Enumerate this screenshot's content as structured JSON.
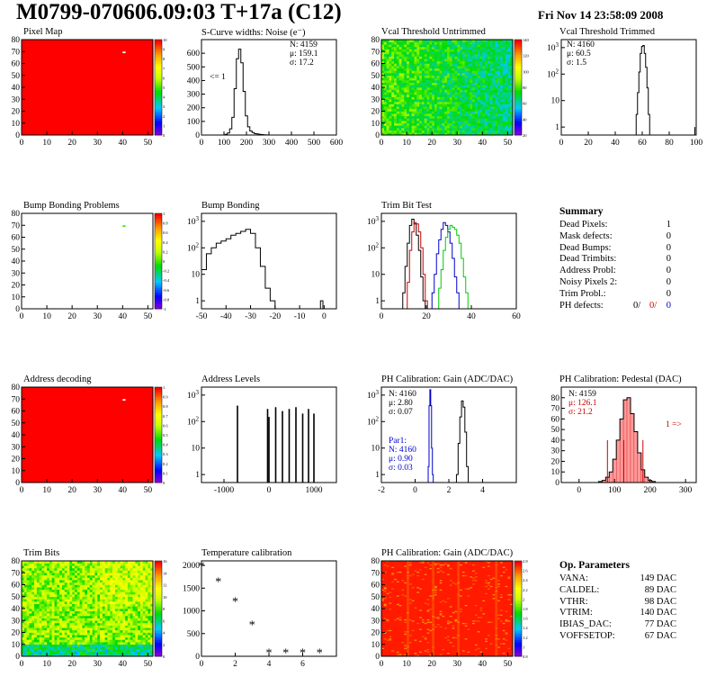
{
  "header": {
    "title": "M0799-070606.09:03 T+17a (C12)",
    "date": "Fri Nov 14 23:58:09 2008"
  },
  "colors": {
    "map_red": "#ff0000",
    "hist_black": "#000000",
    "trim_red": "#cc0000",
    "trim_blue": "#0000cc",
    "trim_green": "#00cc00",
    "pedestal_fill": "#ff9999"
  },
  "panels": {
    "pixel_map": {
      "title": "Pixel Map",
      "palette_ticks": [
        "10",
        "9",
        "8",
        "7",
        "6",
        "5",
        "4",
        "3",
        "2",
        "1",
        "0"
      ]
    },
    "scurve": {
      "title": "S-Curve widths: Noise (e⁻)",
      "stats": [
        "N: 4159",
        "μ: 159.1",
        "σ: 17.2"
      ],
      "underflow_label": "<= 1"
    },
    "vcal_untrimmed": {
      "title": "Vcal Threshold Untrimmed",
      "palette_ticks": [
        "140",
        "120",
        "100",
        "80",
        "60",
        "40",
        "20"
      ]
    },
    "vcal_trimmed": {
      "title": "Vcal Threshold Trimmed",
      "stats": [
        "N: 4160",
        "μ: 60.5",
        "σ:  1.5"
      ]
    },
    "bump_problems": {
      "title": "Bump Bonding Problems",
      "palette_ticks": [
        "1",
        "0.8",
        "0.6",
        "0.4",
        "0.2",
        "0",
        "-0.2",
        "-0.4",
        "-0.6",
        "-0.8",
        "-1"
      ]
    },
    "bump_bonding": {
      "title": "Bump Bonding"
    },
    "trim_bit_test": {
      "title": "Trim Bit Test"
    },
    "address_decoding": {
      "title": "Address decoding",
      "palette_ticks": [
        "1",
        "0.9",
        "0.8",
        "0.7",
        "0.6",
        "0.5",
        "0.4",
        "0.3",
        "0.2",
        "0.1",
        "0"
      ]
    },
    "address_levels": {
      "title": "Address Levels"
    },
    "ph_gain": {
      "title": "PH Calibration: Gain (ADC/DAC)",
      "stats": [
        "N: 4160",
        "μ: 2.80",
        "σ: 0.07"
      ],
      "par1_stats": [
        "Par1:",
        "N: 4160",
        "μ: 0.90",
        "σ: 0.03"
      ]
    },
    "ph_pedestal": {
      "title": "PH Calibration: Pedestal (DAC)",
      "stats": [
        "N: 4159",
        "μ: 126.1",
        "σ: 21.2"
      ],
      "overflow_label": "1 =>"
    },
    "trim_bits": {
      "title": "Trim Bits",
      "palette_ticks": [
        "16",
        "14",
        "12",
        "10",
        "8",
        "6",
        "4",
        "2",
        "0"
      ]
    },
    "temperature": {
      "title": "Temperature calibration"
    },
    "ph_gain_map": {
      "title": "PH Calibration: Gain (ADC/DAC)",
      "palette_ticks": [
        "2.8",
        "2.6",
        "2.4",
        "2.2",
        "2",
        "1.8",
        "1.6",
        "1.4",
        "1.2",
        "1",
        "0.8"
      ]
    }
  },
  "summary": {
    "heading": "Summary",
    "rows": [
      {
        "label": "Dead Pixels:",
        "value": "1"
      },
      {
        "label": "Mask defects:",
        "value": "0"
      },
      {
        "label": "Dead Bumps:",
        "value": "0"
      },
      {
        "label": "Dead Trimbits:",
        "value": "0"
      },
      {
        "label": "Address Probl:",
        "value": "0"
      },
      {
        "label": "Noisy Pixels 2:",
        "value": "0"
      },
      {
        "label": "Trim Probl.:",
        "value": "0"
      }
    ],
    "ph_defects": {
      "label": "PH defects:",
      "v1": "0/",
      "v2": "0/",
      "v3": "0"
    }
  },
  "op_parameters": {
    "heading": "Op. Parameters",
    "rows": [
      {
        "label": "VANA:",
        "value": "149 DAC"
      },
      {
        "label": "CALDEL:",
        "value": "89 DAC"
      },
      {
        "label": "VTHR:",
        "value": "98 DAC"
      },
      {
        "label": "VTRIM:",
        "value": "140 DAC"
      },
      {
        "label": "IBIAS_DAC:",
        "value": "77 DAC"
      },
      {
        "label": "VOFFSETOP:",
        "value": "67 DAC"
      }
    ]
  },
  "chart_data": [
    {
      "id": "pixel_map",
      "type": "heatmap",
      "title": "Pixel Map",
      "xlim": [
        0,
        52
      ],
      "ylim": [
        0,
        80
      ],
      "xticks": [
        0,
        10,
        20,
        30,
        40,
        50
      ],
      "yticks": [
        0,
        10,
        20,
        30,
        40,
        50,
        60,
        70,
        80
      ],
      "zrange": [
        0,
        10
      ],
      "fill": "uniform-red",
      "special_pixels": [
        {
          "x": 40,
          "y": 70,
          "z": 0
        }
      ]
    },
    {
      "id": "scurve",
      "type": "line",
      "title": "S-Curve widths: Noise (e⁻)",
      "xlim": [
        0,
        600
      ],
      "ylim": [
        0,
        700
      ],
      "xticks": [
        0,
        100,
        200,
        300,
        400,
        500,
        600
      ],
      "yticks": [
        0,
        100,
        200,
        300,
        400,
        500,
        600
      ],
      "x": [
        100,
        110,
        120,
        130,
        140,
        150,
        160,
        170,
        180,
        190,
        200,
        210,
        220,
        230,
        240,
        250,
        260,
        270,
        280,
        290,
        300
      ],
      "y": [
        0,
        5,
        15,
        45,
        130,
        340,
        560,
        630,
        530,
        320,
        140,
        60,
        30,
        18,
        10,
        8,
        5,
        3,
        2,
        1,
        0
      ]
    },
    {
      "id": "vcal_untrimmed",
      "type": "heatmap",
      "title": "Vcal Threshold Untrimmed",
      "xlim": [
        0,
        52
      ],
      "ylim": [
        0,
        80
      ],
      "xticks": [
        0,
        10,
        20,
        30,
        40,
        50
      ],
      "yticks": [
        0,
        10,
        20,
        30,
        40,
        50,
        60,
        70,
        80
      ],
      "zrange": [
        0,
        150
      ],
      "fill": "orange-yellow-gradient",
      "left_z": 75,
      "right_z": 55
    },
    {
      "id": "vcal_trimmed",
      "type": "line",
      "log_y": true,
      "title": "Vcal Threshold Trimmed",
      "xlim": [
        0,
        100
      ],
      "ylim": [
        0.5,
        2000
      ],
      "xticks": [
        0,
        20,
        40,
        60,
        80,
        100
      ],
      "yticks": [
        1,
        10,
        100,
        1000
      ],
      "x": [
        55,
        56,
        57,
        58,
        59,
        60,
        61,
        62,
        63,
        64,
        65,
        66,
        99
      ],
      "y": [
        0.5,
        3,
        20,
        120,
        600,
        1100,
        1200,
        600,
        180,
        30,
        3,
        0.5,
        1
      ]
    },
    {
      "id": "bump_problems",
      "type": "heatmap",
      "title": "Bump Bonding Problems",
      "xlim": [
        0,
        52
      ],
      "ylim": [
        0,
        80
      ],
      "xticks": [
        0,
        10,
        20,
        30,
        40,
        50
      ],
      "yticks": [
        0,
        10,
        20,
        30,
        40,
        50,
        60,
        70,
        80
      ],
      "zrange": [
        -1,
        1
      ],
      "fill": "empty",
      "special_pixels": [
        {
          "x": 40,
          "y": 70,
          "z": 1
        }
      ]
    },
    {
      "id": "bump_bonding",
      "type": "line",
      "log_y": true,
      "title": "Bump Bonding",
      "xlim": [
        -50,
        5
      ],
      "ylim": [
        0.5,
        2000
      ],
      "xticks": [
        -50,
        -40,
        -30,
        -20,
        -10,
        0
      ],
      "yticks": [
        1,
        10,
        100,
        1000
      ],
      "x": [
        -49,
        -47,
        -45,
        -43,
        -41,
        -39,
        -37,
        -35,
        -33,
        -31,
        -29,
        -27,
        -25,
        -23,
        -21,
        -19,
        -17,
        -1
      ],
      "y": [
        15,
        60,
        100,
        150,
        180,
        220,
        300,
        350,
        420,
        500,
        350,
        100,
        20,
        3,
        1,
        0.5,
        0.5,
        1
      ]
    },
    {
      "id": "trim_bit_test",
      "type": "line",
      "log_y": true,
      "title": "Trim Bit Test",
      "xlim": [
        0,
        60
      ],
      "ylim": [
        0.5,
        2000
      ],
      "xticks": [
        0,
        20,
        40,
        60
      ],
      "yticks": [
        1,
        10,
        100,
        1000
      ],
      "series": [
        {
          "color": "black",
          "x": [
            10,
            11,
            12,
            13,
            14,
            15,
            16,
            17,
            18,
            19
          ],
          "y": [
            2,
            20,
            150,
            700,
            1200,
            800,
            300,
            80,
            8,
            1
          ]
        },
        {
          "color": "red",
          "x": [
            12,
            13,
            14,
            15,
            16,
            17,
            18,
            19,
            20
          ],
          "y": [
            5,
            80,
            400,
            900,
            800,
            400,
            100,
            10,
            1
          ]
        },
        {
          "color": "blue",
          "x": [
            23,
            24,
            25,
            26,
            27,
            28,
            29,
            30,
            31,
            32,
            33,
            34,
            35
          ],
          "y": [
            2,
            10,
            60,
            200,
            500,
            900,
            700,
            400,
            150,
            40,
            8,
            2,
            0.5
          ]
        },
        {
          "color": "green",
          "x": [
            26,
            27,
            28,
            29,
            30,
            31,
            32,
            33,
            34,
            35,
            36,
            37,
            38,
            39
          ],
          "y": [
            3,
            15,
            80,
            250,
            500,
            700,
            600,
            500,
            300,
            150,
            40,
            8,
            2,
            0.5
          ]
        }
      ]
    },
    {
      "id": "address_decoding",
      "type": "heatmap",
      "title": "Address decoding",
      "xlim": [
        0,
        52
      ],
      "ylim": [
        0,
        80
      ],
      "xticks": [
        0,
        10,
        20,
        30,
        40,
        50
      ],
      "yticks": [
        0,
        10,
        20,
        30,
        40,
        50,
        60,
        70,
        80
      ],
      "zrange": [
        0,
        1
      ],
      "fill": "uniform-red",
      "special_pixels": [
        {
          "x": 40,
          "y": 70,
          "z": 0
        }
      ]
    },
    {
      "id": "address_levels",
      "type": "bar",
      "log_y": true,
      "title": "Address Levels",
      "xlim": [
        -1500,
        1500
      ],
      "ylim": [
        0.5,
        2000
      ],
      "xticks": [
        -1000,
        0,
        1000
      ],
      "yticks": [
        1,
        10,
        100,
        1000
      ],
      "peaks": [
        {
          "x": -700,
          "y": 400
        },
        {
          "x": -30,
          "y": 300
        },
        {
          "x": 0,
          "y": 150
        },
        {
          "x": 150,
          "y": 350
        },
        {
          "x": 300,
          "y": 250
        },
        {
          "x": 450,
          "y": 300
        },
        {
          "x": 600,
          "y": 350
        },
        {
          "x": 750,
          "y": 200
        },
        {
          "x": 880,
          "y": 300
        },
        {
          "x": 1000,
          "y": 200
        }
      ]
    },
    {
      "id": "ph_gain",
      "type": "line",
      "log_y": true,
      "title": "PH Calibration: Gain (ADC/DAC)",
      "xlim": [
        -2,
        6
      ],
      "ylim": [
        0.5,
        2000
      ],
      "xticks": [
        -2,
        0,
        2,
        4
      ],
      "yticks": [
        1,
        10,
        100,
        1000
      ],
      "series": [
        {
          "color": "black",
          "x": [
            2.5,
            2.6,
            2.7,
            2.8,
            2.9,
            3.0,
            3.1
          ],
          "y": [
            1,
            15,
            150,
            600,
            350,
            40,
            2
          ]
        },
        {
          "color": "blue",
          "x": [
            0.8,
            0.85,
            0.9,
            0.95,
            1.0,
            1.05
          ],
          "y": [
            2,
            400,
            1600,
            400,
            10,
            1
          ]
        }
      ]
    },
    {
      "id": "ph_pedestal",
      "type": "bar",
      "title": "PH Calibration: Pedestal (DAC)",
      "xlim": [
        -50,
        330
      ],
      "ylim": [
        0,
        90
      ],
      "xticks": [
        0,
        100,
        200,
        300
      ],
      "yticks": [
        0,
        10,
        20,
        30,
        40,
        50,
        60,
        70,
        80
      ],
      "x": [
        60,
        70,
        80,
        90,
        100,
        110,
        120,
        130,
        140,
        150,
        160,
        170,
        180,
        190,
        200,
        210
      ],
      "y": [
        1,
        2,
        5,
        10,
        22,
        40,
        60,
        78,
        80,
        65,
        48,
        28,
        12,
        5,
        2,
        1
      ],
      "markers": [
        80,
        126,
        180
      ]
    },
    {
      "id": "trim_bits",
      "type": "heatmap",
      "title": "Trim Bits",
      "xlim": [
        0,
        52
      ],
      "ylim": [
        0,
        80
      ],
      "xticks": [
        0,
        10,
        20,
        30,
        40,
        50
      ],
      "yticks": [
        0,
        10,
        20,
        30,
        40,
        50,
        60,
        70,
        80
      ],
      "zrange": [
        0,
        16
      ],
      "fill": "green-cyan-noise",
      "mean_z": 9
    },
    {
      "id": "temperature",
      "type": "scatter",
      "title": "Temperature calibration",
      "xlim": [
        0,
        8
      ],
      "ylim": [
        0,
        2100
      ],
      "xticks": [
        0,
        2,
        4,
        6
      ],
      "yticks": [
        0,
        500,
        1000,
        1500,
        2000
      ],
      "x": [
        0,
        1,
        2,
        3,
        4,
        5,
        6,
        7
      ],
      "y": [
        2000,
        1650,
        1220,
        700,
        90,
        90,
        90,
        90
      ]
    },
    {
      "id": "ph_gain_map",
      "type": "heatmap",
      "title": "PH Calibration: Gain (ADC/DAC)",
      "xlim": [
        0,
        52
      ],
      "ylim": [
        0,
        80
      ],
      "xticks": [
        0,
        10,
        20,
        30,
        40,
        50
      ],
      "yticks": [
        0,
        10,
        20,
        30,
        40,
        50,
        60,
        70,
        80
      ],
      "zrange": [
        0.8,
        2.9
      ],
      "fill": "red-speckle",
      "mean_z": 2.8
    }
  ]
}
